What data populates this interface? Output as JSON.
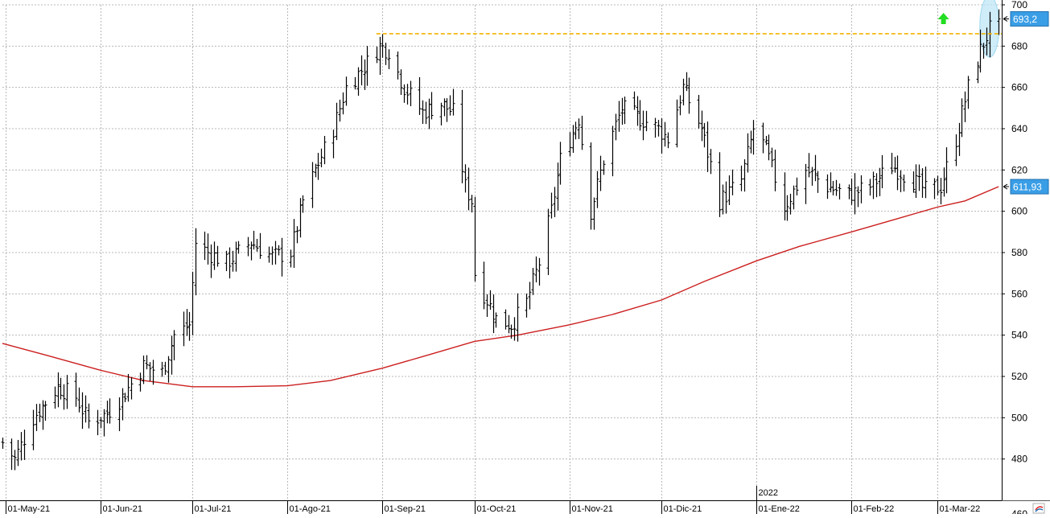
{
  "colors": {
    "background": "#ffffff",
    "grid": "#b8b8b8",
    "bars": "#000000",
    "moving_average": "#cc1f1f",
    "resistance": "#f2b400",
    "highlight": "#bfe6f7",
    "arrow": "#22dd22",
    "price_label_bg": "#3a9ee6"
  },
  "chart_data": {
    "type": "ohlc",
    "ylim": [
      460,
      700
    ],
    "y_ticks": [
      480,
      500,
      520,
      540,
      560,
      580,
      600,
      620,
      640,
      660,
      680,
      700
    ],
    "y_tick_labels": [
      "480",
      "500",
      "520",
      "540",
      "560",
      "580",
      "600",
      "620",
      "640",
      "660",
      "680",
      "700"
    ],
    "bottom_partial_tick": "460",
    "x_date_range": [
      "2021-04-30",
      "2022-03-22"
    ],
    "x_ticks": [
      {
        "date": "2021-05-01",
        "label": "01-May-21"
      },
      {
        "date": "2021-06-01",
        "label": "01-Jun-21"
      },
      {
        "date": "2021-07-01",
        "label": "01-Jul-21"
      },
      {
        "date": "2021-08-01",
        "label": "01-Ago-21"
      },
      {
        "date": "2021-09-01",
        "label": "01-Sep-21"
      },
      {
        "date": "2021-10-01",
        "label": "01-Oct-21"
      },
      {
        "date": "2021-11-01",
        "label": "01-Nov-21"
      },
      {
        "date": "2021-12-01",
        "label": "01-Dic-21"
      },
      {
        "date": "2022-01-01",
        "label": "01-Ene-22"
      },
      {
        "date": "2022-02-01",
        "label": "01-Feb-22"
      },
      {
        "date": "2022-03-01",
        "label": "01-Mar-22"
      }
    ],
    "year_marker": {
      "date": "2022-01-01",
      "label": "2022"
    },
    "price_path": [
      [
        "2021-04-30",
        488
      ],
      [
        "2021-05-04",
        480
      ],
      [
        "2021-05-10",
        500
      ],
      [
        "2021-05-18",
        515
      ],
      [
        "2021-05-24",
        510
      ],
      [
        "2021-05-28",
        498
      ],
      [
        "2021-06-03",
        502
      ],
      [
        "2021-06-08",
        510
      ],
      [
        "2021-06-15",
        525
      ],
      [
        "2021-06-21",
        522
      ],
      [
        "2021-06-25",
        540
      ],
      [
        "2021-06-30",
        545
      ],
      [
        "2021-07-02",
        585
      ],
      [
        "2021-07-06",
        580
      ],
      [
        "2021-07-12",
        575
      ],
      [
        "2021-07-20",
        585
      ],
      [
        "2021-07-27",
        578
      ],
      [
        "2021-08-02",
        580
      ],
      [
        "2021-08-06",
        605
      ],
      [
        "2021-08-10",
        620
      ],
      [
        "2021-08-16",
        640
      ],
      [
        "2021-08-20",
        660
      ],
      [
        "2021-08-26",
        670
      ],
      [
        "2021-08-31",
        680
      ],
      [
        "2021-09-03",
        678
      ],
      [
        "2021-09-08",
        660
      ],
      [
        "2021-09-14",
        648
      ],
      [
        "2021-09-20",
        652
      ],
      [
        "2021-09-24",
        648
      ],
      [
        "2021-09-28",
        612
      ],
      [
        "2021-09-30",
        605
      ],
      [
        "2021-10-01",
        570
      ],
      [
        "2021-10-04",
        560
      ],
      [
        "2021-10-08",
        548
      ],
      [
        "2021-10-13",
        545
      ],
      [
        "2021-10-18",
        556
      ],
      [
        "2021-10-22",
        575
      ],
      [
        "2021-10-26",
        600
      ],
      [
        "2021-10-29",
        625
      ],
      [
        "2021-11-04",
        645
      ],
      [
        "2021-11-08",
        600
      ],
      [
        "2021-11-12",
        625
      ],
      [
        "2021-11-18",
        650
      ],
      [
        "2021-11-24",
        645
      ],
      [
        "2021-11-30",
        640
      ],
      [
        "2021-12-03",
        635
      ],
      [
        "2021-12-08",
        660
      ],
      [
        "2021-12-14",
        640
      ],
      [
        "2021-12-20",
        605
      ],
      [
        "2021-12-27",
        615
      ],
      [
        "2021-12-31",
        640
      ],
      [
        "2022-01-04",
        630
      ],
      [
        "2022-01-10",
        602
      ],
      [
        "2022-01-17",
        620
      ],
      [
        "2022-01-24",
        612
      ],
      [
        "2022-01-31",
        608
      ],
      [
        "2022-02-07",
        612
      ],
      [
        "2022-02-14",
        622
      ],
      [
        "2022-02-21",
        615
      ],
      [
        "2022-02-25",
        610
      ],
      [
        "2022-03-02",
        612
      ],
      [
        "2022-03-07",
        635
      ],
      [
        "2022-03-11",
        660
      ],
      [
        "2022-03-15",
        678
      ],
      [
        "2022-03-18",
        688
      ],
      [
        "2022-03-21",
        693
      ]
    ],
    "moving_average": [
      [
        "2021-04-30",
        536
      ],
      [
        "2021-05-15",
        530
      ],
      [
        "2021-06-01",
        523
      ],
      [
        "2021-06-15",
        518
      ],
      [
        "2021-07-01",
        515
      ],
      [
        "2021-07-15",
        515
      ],
      [
        "2021-08-01",
        515.5
      ],
      [
        "2021-08-15",
        518
      ],
      [
        "2021-09-01",
        524
      ],
      [
        "2021-09-15",
        530
      ],
      [
        "2021-10-01",
        537
      ],
      [
        "2021-10-15",
        540
      ],
      [
        "2021-11-01",
        545
      ],
      [
        "2021-11-15",
        550
      ],
      [
        "2021-12-01",
        557
      ],
      [
        "2021-12-15",
        566
      ],
      [
        "2022-01-01",
        576
      ],
      [
        "2022-01-15",
        583
      ],
      [
        "2022-02-01",
        590
      ],
      [
        "2022-02-15",
        596
      ],
      [
        "2022-03-01",
        602
      ],
      [
        "2022-03-10",
        605
      ],
      [
        "2022-03-21",
        611.93
      ]
    ],
    "resistance_level": 686,
    "resistance_from": "2021-08-30",
    "resistance_to": "2022-03-21",
    "last_price": 693.2,
    "last_price_label": "693,2",
    "moving_average_last": 611.93,
    "moving_average_label": "611,93",
    "highlight_date": "2022-03-18",
    "highlight_y_range": [
      677,
      702
    ],
    "arrow_date": "2022-03-03",
    "arrow_value": 693
  }
}
